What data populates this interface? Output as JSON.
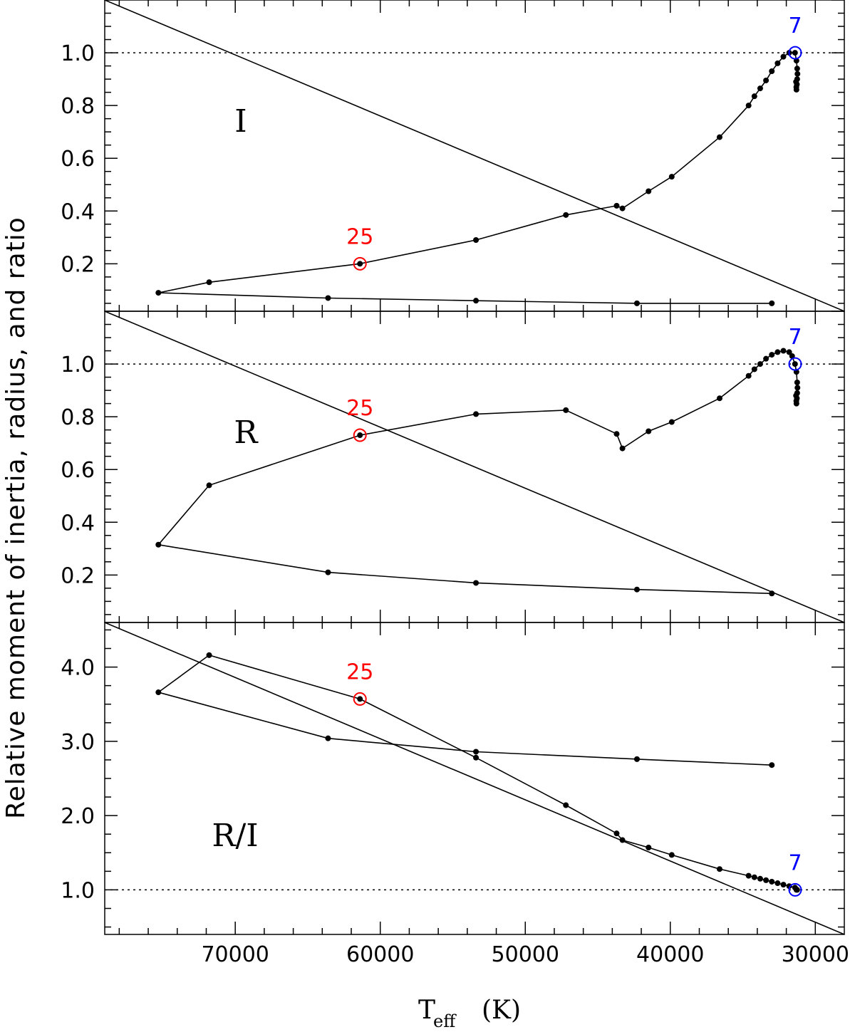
{
  "figure": {
    "ylabel": "Relative moment of inertia, radius, and ratio",
    "xlabel_main": "T",
    "xlabel_sub": "eff",
    "xlabel_unit": "(K)",
    "x_ticks": [
      "70000",
      "60000",
      "50000",
      "40000",
      "30000"
    ]
  },
  "colors": {
    "line": "#000000",
    "mark25": "#ff0000",
    "mark7": "#0000ff"
  },
  "chart_data": [
    {
      "type": "line",
      "panel": "I",
      "label": "I",
      "xlim": [
        79000,
        28000
      ],
      "ylim": [
        0.02,
        1.2
      ],
      "y_ticks": [
        "0.2",
        "0.4",
        "0.6",
        "0.8",
        "1.0"
      ],
      "reference_y": 1.0,
      "series": [
        {
          "name": "track",
          "x": [
            33000,
            42300,
            53400,
            63600,
            75300,
            71800,
            61400,
            53400,
            47200,
            43700,
            43300,
            41500,
            39900,
            36600,
            34600,
            34200,
            33800,
            33400,
            33000,
            32600,
            32200,
            31800,
            31400,
            31300,
            31250,
            31230,
            31250,
            31270,
            31300,
            31310,
            31330
          ],
          "y": [
            0.05,
            0.05,
            0.06,
            0.07,
            0.09,
            0.13,
            0.2,
            0.29,
            0.385,
            0.42,
            0.41,
            0.475,
            0.53,
            0.68,
            0.8,
            0.835,
            0.865,
            0.895,
            0.93,
            0.96,
            0.985,
            1.0,
            1.0,
            0.97,
            0.94,
            0.92,
            0.9,
            0.88,
            0.86,
            0.87,
            0.89
          ]
        },
        {
          "name": "diagonal",
          "x": [
            79000,
            28000
          ],
          "y": [
            1.2,
            0.02
          ]
        }
      ],
      "annotations": [
        {
          "text": "25",
          "x": 61400,
          "y": 0.2,
          "color": "red"
        },
        {
          "text": "7",
          "x": 31000,
          "y": 1.0,
          "color": "blue"
        }
      ]
    },
    {
      "type": "line",
      "panel": "R",
      "label": "R",
      "xlim": [
        79000,
        28000
      ],
      "ylim": [
        0.02,
        1.2
      ],
      "y_ticks": [
        "0.2",
        "0.4",
        "0.6",
        "0.8",
        "1.0"
      ],
      "reference_y": 1.0,
      "series": [
        {
          "name": "track",
          "x": [
            33000,
            42300,
            53400,
            63600,
            75300,
            71800,
            61400,
            53400,
            47200,
            43700,
            43300,
            41500,
            39900,
            36600,
            34600,
            34200,
            33800,
            33400,
            33000,
            32600,
            32200,
            31800,
            31600,
            31400,
            31300,
            31250,
            31230,
            31250,
            31270,
            31300,
            31310,
            31330
          ],
          "y": [
            0.13,
            0.145,
            0.17,
            0.21,
            0.315,
            0.54,
            0.73,
            0.81,
            0.825,
            0.735,
            0.68,
            0.745,
            0.78,
            0.87,
            0.955,
            0.98,
            1.0,
            1.02,
            1.035,
            1.045,
            1.05,
            1.045,
            1.03,
            1.0,
            0.97,
            0.93,
            0.91,
            0.89,
            0.87,
            0.85,
            0.86,
            0.88
          ]
        },
        {
          "name": "diagonal",
          "x": [
            79000,
            28000
          ],
          "y": [
            1.2,
            0.02
          ]
        }
      ],
      "annotations": [
        {
          "text": "25",
          "x": 61400,
          "y": 0.73,
          "color": "red"
        },
        {
          "text": "7",
          "x": 31000,
          "y": 1.0,
          "color": "blue"
        }
      ]
    },
    {
      "type": "line",
      "panel": "R/I",
      "label": "R/I",
      "xlim": [
        79000,
        28000
      ],
      "ylim": [
        0.4,
        4.6
      ],
      "y_ticks": [
        "1.0",
        "2.0",
        "3.0",
        "4.0"
      ],
      "reference_y": 1.0,
      "series": [
        {
          "name": "track",
          "x": [
            33000,
            42300,
            53400,
            63600,
            75300,
            71800,
            61400,
            53400,
            47200,
            43700,
            43300,
            41500,
            39900,
            36600,
            34600,
            34200,
            33800,
            33400,
            33000,
            32600,
            32200,
            31800,
            31400,
            31300,
            31250
          ],
          "y": [
            2.68,
            2.76,
            2.86,
            3.04,
            3.66,
            4.16,
            3.57,
            2.78,
            2.14,
            1.76,
            1.67,
            1.57,
            1.47,
            1.28,
            1.19,
            1.17,
            1.15,
            1.13,
            1.11,
            1.09,
            1.07,
            1.05,
            1.03,
            1.0,
            1.0
          ]
        },
        {
          "name": "diagonal",
          "x": [
            79000,
            28000
          ],
          "y": [
            4.6,
            0.4
          ]
        }
      ],
      "annotations": [
        {
          "text": "25",
          "x": 61400,
          "y": 3.57,
          "color": "red"
        },
        {
          "text": "7",
          "x": 31000,
          "y": 1.0,
          "color": "blue"
        }
      ]
    }
  ]
}
